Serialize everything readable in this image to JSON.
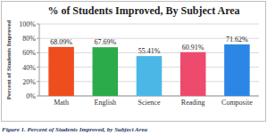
{
  "chart_data": {
    "type": "bar",
    "title": "% of Students Improved, By Subject Area",
    "y_label": "Percent of Students Improved",
    "caption": "Figure 1. Percent of Students Improved, by Subject Area",
    "categories": [
      "Math",
      "English",
      "Science",
      "Reading",
      "Composite"
    ],
    "values": [
      68.09,
      67.69,
      55.41,
      60.91,
      71.62
    ],
    "value_labels": [
      "68.09%",
      "67.69%",
      "55.41%",
      "60.91%",
      "71.62%"
    ],
    "colors": [
      "#ee4d1e",
      "#2bab4a",
      "#4ab8e6",
      "#ee4a6d",
      "#2c86e6"
    ],
    "ylim": [
      0,
      100
    ],
    "yticks": [
      {
        "value": 0,
        "label": "0%"
      },
      {
        "value": 20,
        "label": "20%"
      },
      {
        "value": 40,
        "label": "40%"
      },
      {
        "value": 60,
        "label": "60%"
      },
      {
        "value": 80,
        "label": "80%"
      },
      {
        "value": 100,
        "label": "100%"
      }
    ],
    "grid": true,
    "data_labels": true
  }
}
